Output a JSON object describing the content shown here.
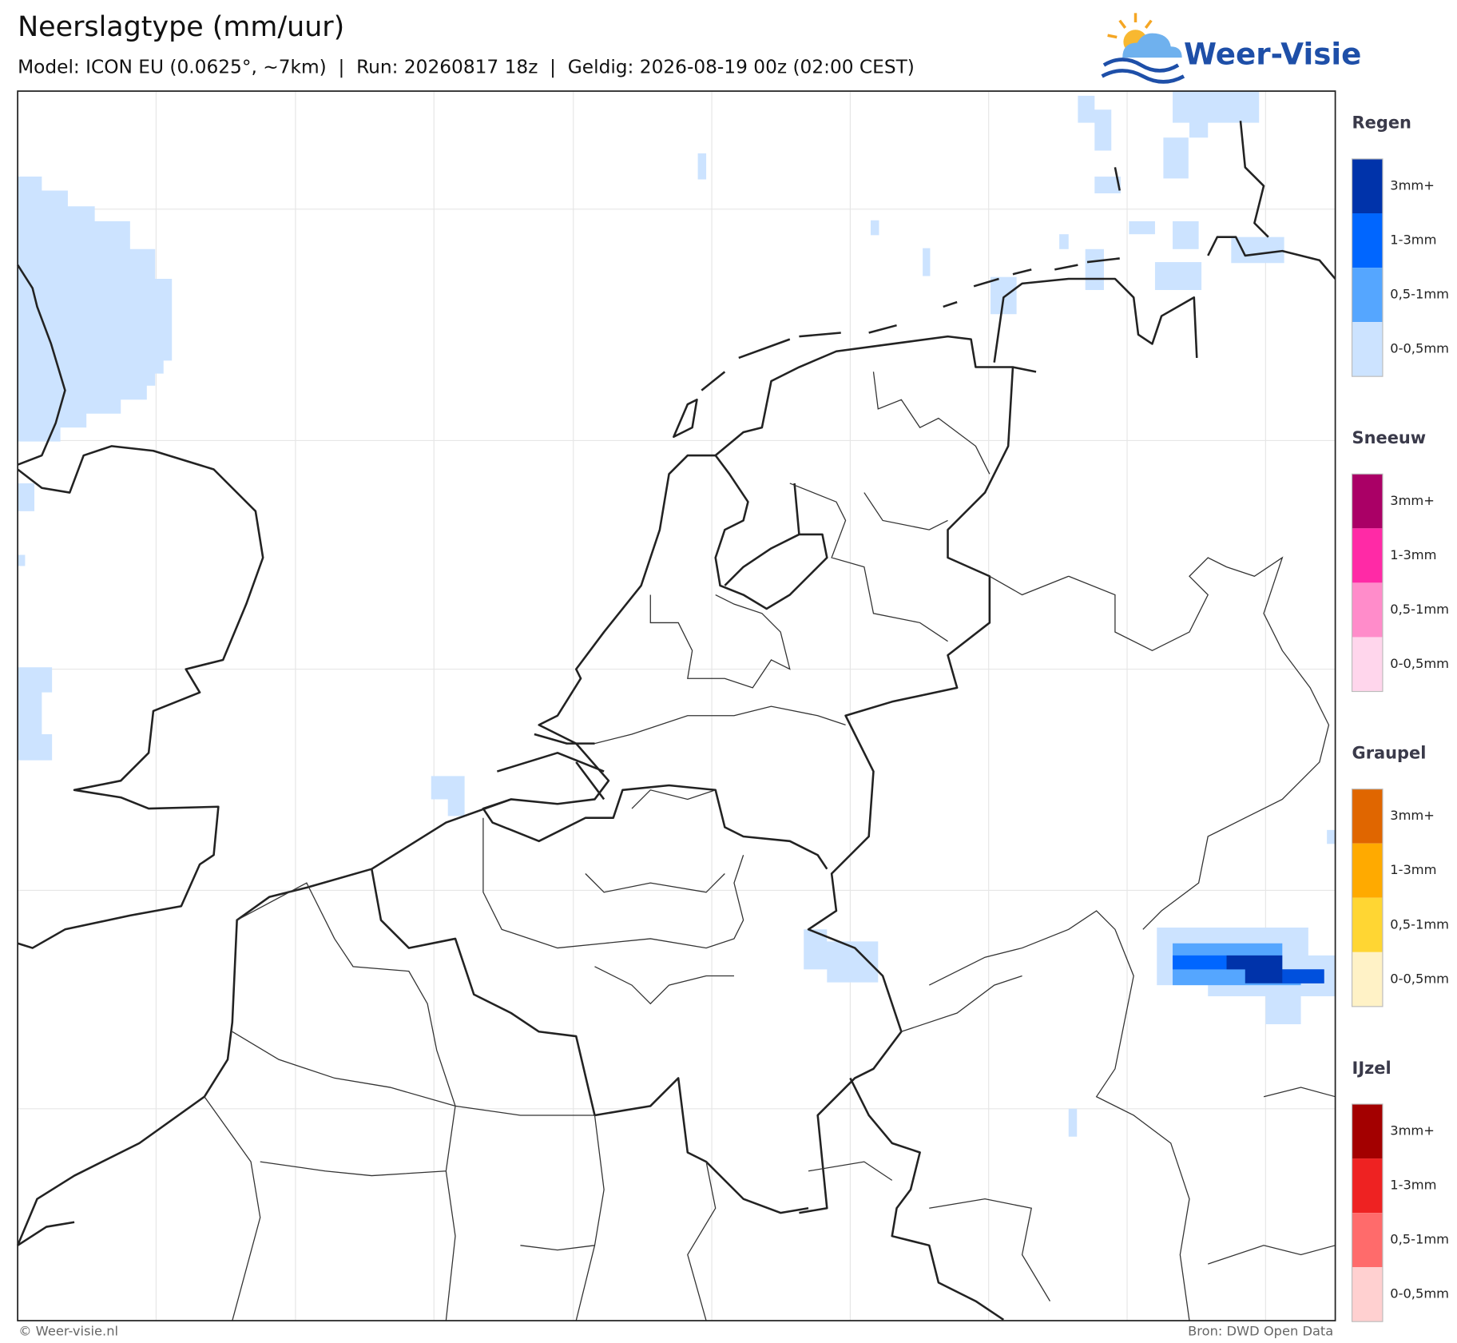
{
  "header": {
    "title": "Neerslagtype (mm/uur)",
    "subtitle": "Model: ICON EU (0.0625°, ~7km)  |  Run: 20260817 18z  |  Geldig: 2026-08-19 00z (02:00 CEST)"
  },
  "logo": {
    "text": "Weer-Visie"
  },
  "legend": [
    {
      "title": "Regen",
      "items": [
        {
          "label": "3mm+",
          "color": "#0033aa"
        },
        {
          "label": "1-3mm",
          "color": "#0066ff"
        },
        {
          "label": "0,5-1mm",
          "color": "#55a6ff"
        },
        {
          "label": "0-0,5mm",
          "color": "#cce3ff"
        }
      ]
    },
    {
      "title": "Sneeuw",
      "items": [
        {
          "label": "3mm+",
          "color": "#aa0066"
        },
        {
          "label": "1-3mm",
          "color": "#ff2aa6"
        },
        {
          "label": "0,5-1mm",
          "color": "#ff8cca"
        },
        {
          "label": "0-0,5mm",
          "color": "#ffd6ec"
        }
      ]
    },
    {
      "title": "Graupel",
      "items": [
        {
          "label": "3mm+",
          "color": "#e06600"
        },
        {
          "label": "1-3mm",
          "color": "#ffaa00"
        },
        {
          "label": "0,5-1mm",
          "color": "#ffd633"
        },
        {
          "label": "0-0,5mm",
          "color": "#fff2c6"
        }
      ]
    },
    {
      "title": "IJzel",
      "items": [
        {
          "label": "3mm+",
          "color": "#a30000"
        },
        {
          "label": "1-3mm",
          "color": "#ee2222"
        },
        {
          "label": "0,5-1mm",
          "color": "#ff6b6b"
        },
        {
          "label": "0-0,5mm",
          "color": "#ffd0d0"
        }
      ]
    }
  ],
  "footer": {
    "left": "© Weer-visie.nl",
    "right": "Bron: DWD Open Data"
  }
}
